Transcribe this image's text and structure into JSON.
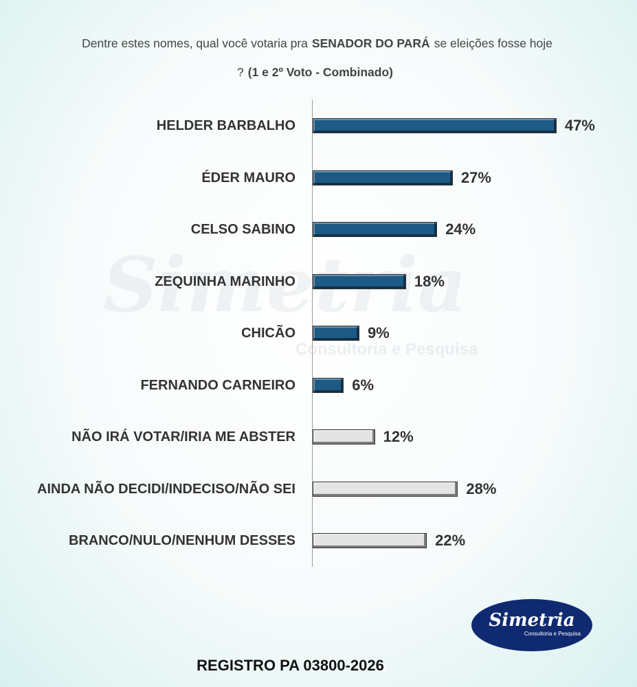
{
  "chart_data": {
    "type": "bar",
    "orientation": "horizontal",
    "title": [
      "Dentre estes nomes, qual você votaria pra",
      "SENADOR DO PARÁ",
      "se eleições fosse hoje ?",
      "(1 e 2º Voto - Combinado)"
    ],
    "categories": [
      "HELDER BARBALHO",
      "ÉDER MAURO",
      "CELSO SABINO",
      "ZEQUINHA MARINHO",
      "CHICÃO",
      "FERNANDO CARNEIRO",
      "NÃO IRÁ VOTAR/IRIA ME ABSTER",
      "AINDA NÃO DECIDI/INDECISO/NÃO SEI",
      "BRANCO/NULO/NENHUM DESSES"
    ],
    "values": [
      47,
      27,
      24,
      18,
      9,
      6,
      12,
      28,
      22
    ],
    "value_labels": [
      "47%",
      "27%",
      "24%",
      "18%",
      "9%",
      "6%",
      "12%",
      "28%",
      "22%"
    ],
    "colors": [
      "#1d5a85",
      "#1d5a85",
      "#1d5a85",
      "#1d5a85",
      "#1d5a85",
      "#1d5a85",
      "#e4e4e4",
      "#e4e4e4",
      "#e4e4e4"
    ],
    "xlim": [
      0,
      60
    ],
    "footer": "REGISTRO PA 03800-2026",
    "logo": {
      "name": "Simetria",
      "tagline": "Consultoria e Pesquisa"
    }
  }
}
